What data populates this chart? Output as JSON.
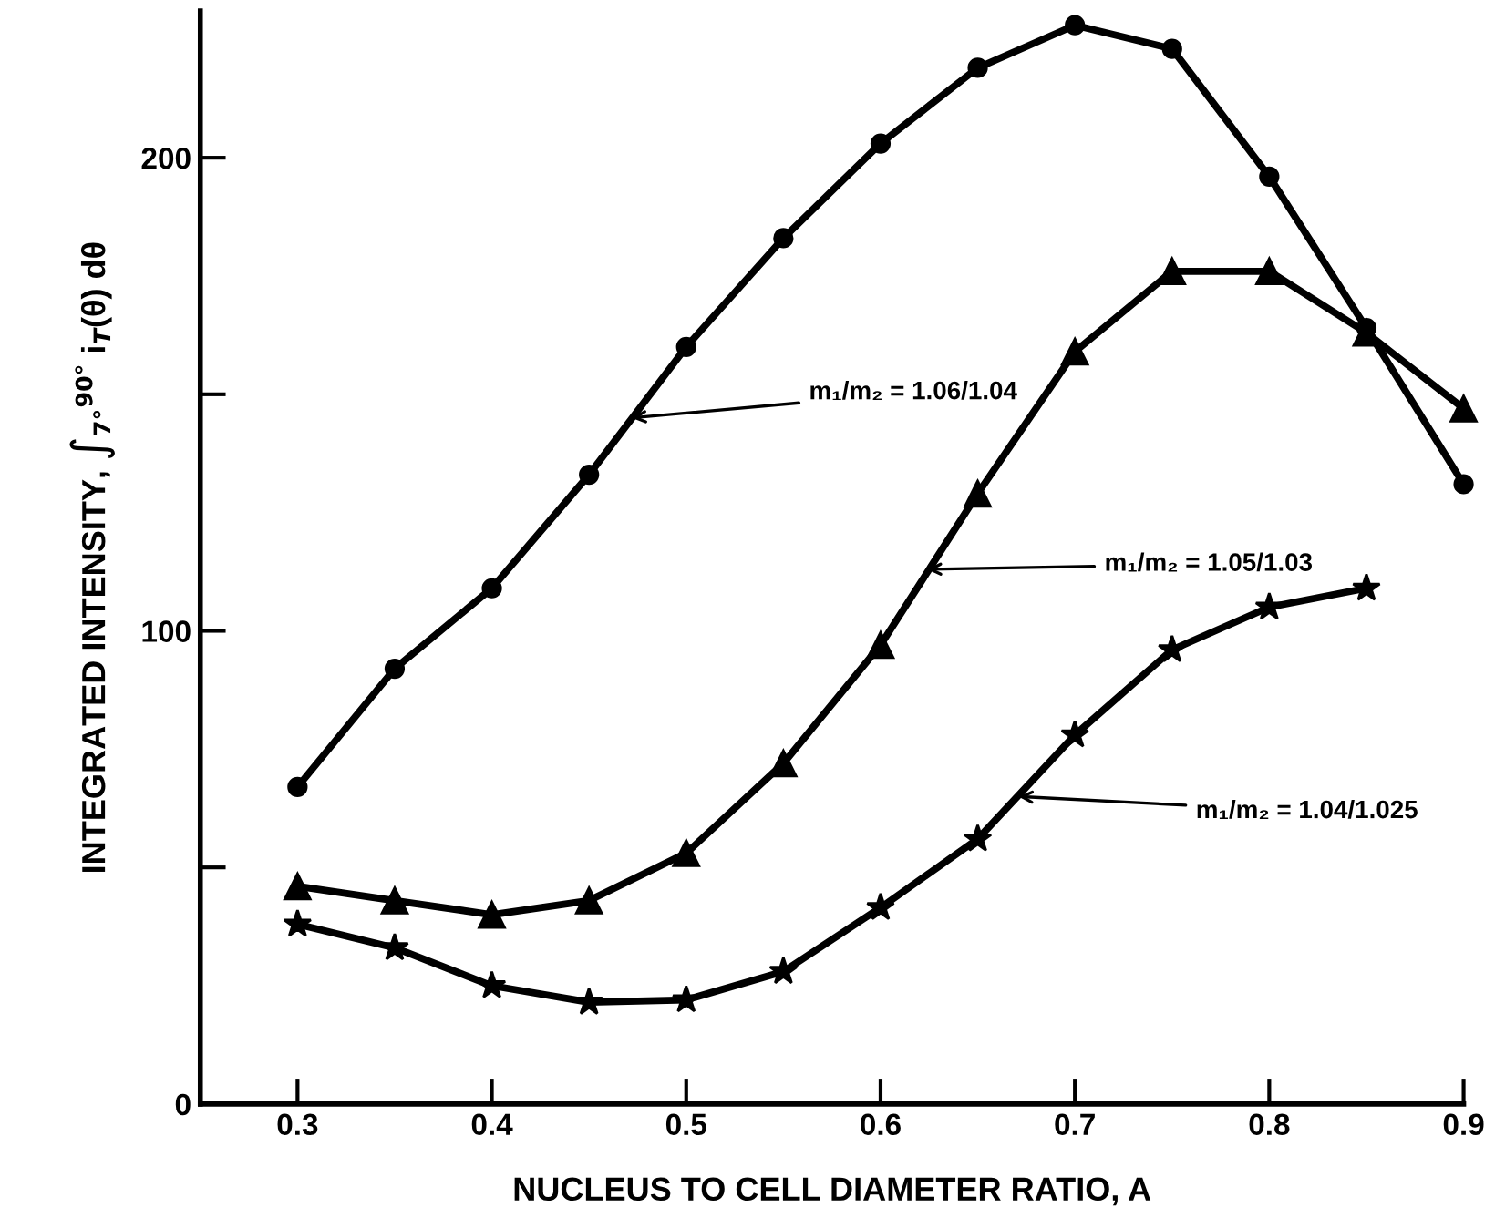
{
  "chart_data": {
    "type": "line",
    "xlabel": "NUCLEUS TO CELL DIAMETER RATIO, A",
    "ylabel": "INTEGRATED INTENSITY, ∫$_{7°}$$^{90°}$ i$_{T}$(θ) dθ",
    "x": [
      0.3,
      0.35,
      0.4,
      0.45,
      0.5,
      0.55,
      0.6,
      0.65,
      0.7,
      0.75,
      0.8,
      0.85,
      0.9
    ],
    "series": [
      {
        "color": "#000000",
        "marker": "circle",
        "values": [
          67,
          92,
          109,
          133,
          160,
          183,
          203,
          219,
          228,
          223,
          196,
          164,
          131
        ]
      },
      {
        "color": "#000000",
        "marker": "triangle",
        "values": [
          46,
          43,
          40,
          43,
          53,
          72,
          97,
          129,
          159,
          176,
          176,
          163,
          147
        ]
      },
      {
        "color": "#000000",
        "marker": "star",
        "values": [
          38,
          33,
          25,
          21.5,
          22,
          28,
          41.5,
          56,
          78,
          96,
          105,
          109,
          null
        ]
      }
    ],
    "annotations": [
      {
        "text": "m₁/m₂ = 1.06/1.04",
        "x": 0.472,
        "y": 145
      },
      {
        "text": "m₁/m₂ = 1.05/1.03",
        "x": 0.624,
        "y": 113
      },
      {
        "text": "m₁/m₂ = 1.04/1.025",
        "x": 0.671,
        "y": 65
      }
    ],
    "xlim": [
      0.25,
      0.9
    ],
    "ylim": [
      0,
      231
    ],
    "xticks": [
      0.3,
      0.4,
      0.5,
      0.6,
      0.7,
      0.8,
      0.9
    ],
    "yticks": [
      0,
      {
        "value": 50,
        "label": null
      },
      100,
      {
        "value": 150,
        "label": null
      },
      200
    ],
    "grid": false,
    "legend": false,
    "line_style": "solid"
  }
}
